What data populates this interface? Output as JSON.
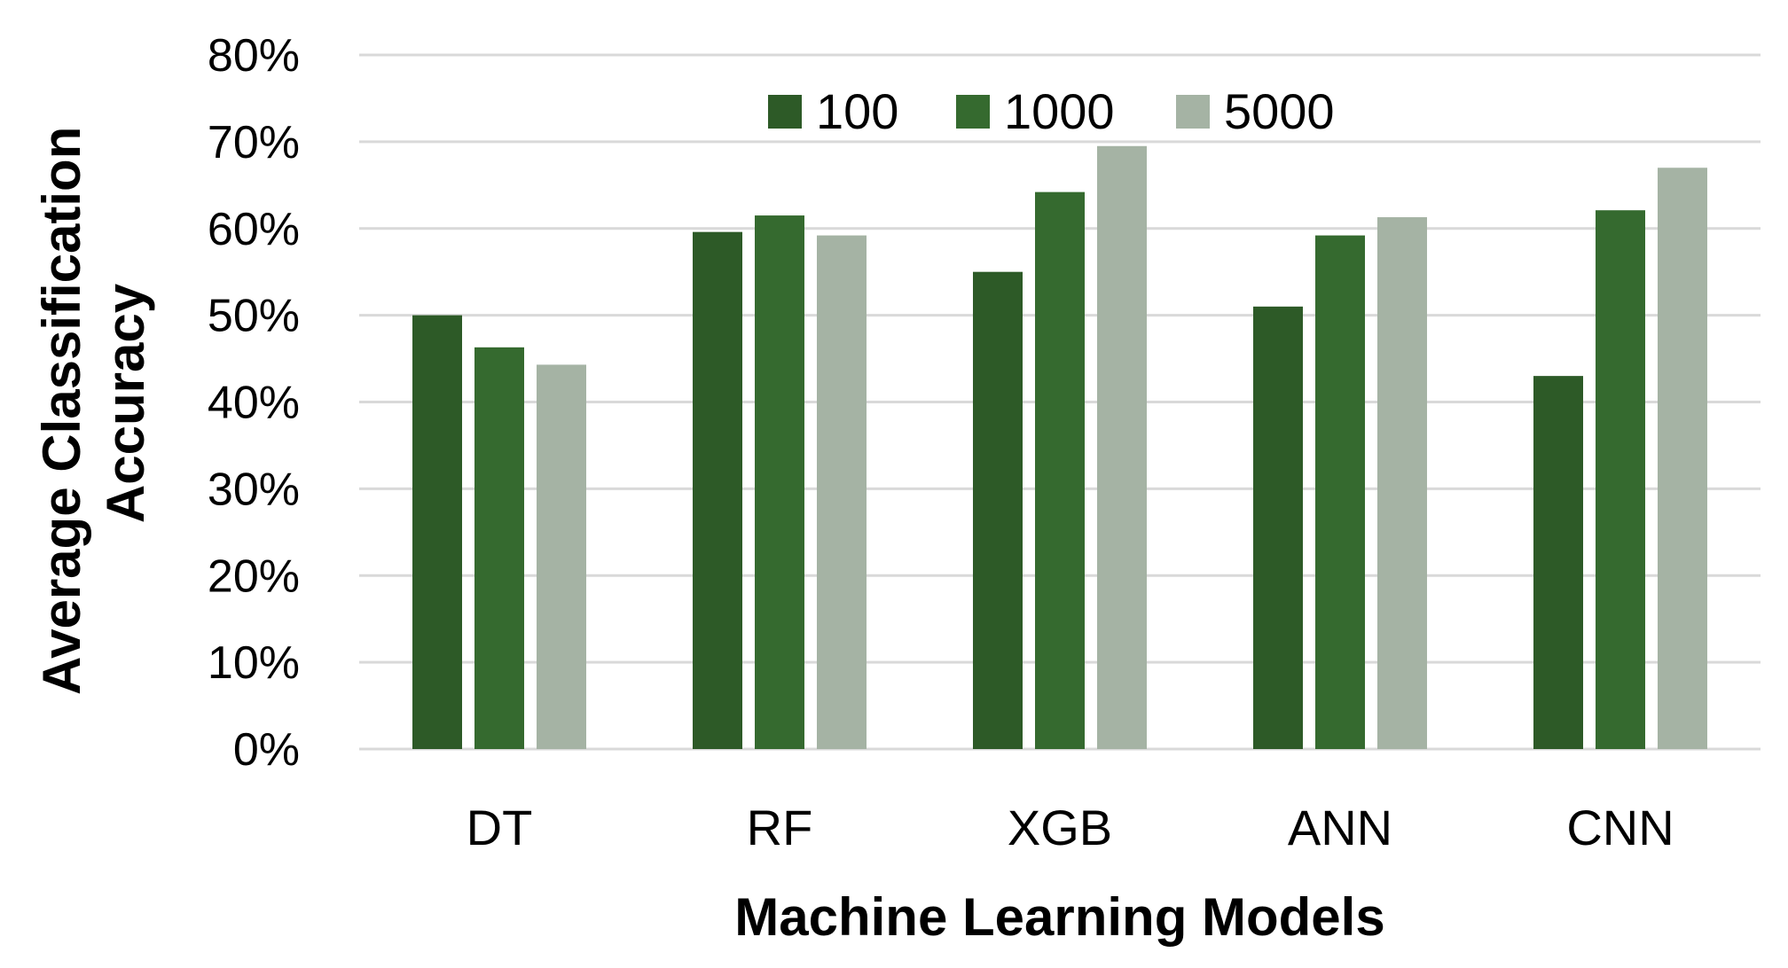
{
  "chart_data": {
    "type": "bar",
    "title": "",
    "xlabel": "Machine Learning Models",
    "ylabel_lines": [
      "Average Classification",
      "Accuracy"
    ],
    "categories": [
      "DT",
      "RF",
      "XGB",
      "ANN",
      "CNN"
    ],
    "series": [
      {
        "name": "100",
        "color": "#2d5a27",
        "values": [
          50,
          59.6,
          55,
          51,
          43
        ]
      },
      {
        "name": "1000",
        "color": "#356a2f",
        "values": [
          46.3,
          61.5,
          64.2,
          59.2,
          62.1
        ]
      },
      {
        "name": "5000",
        "color": "#a5b3a4",
        "values": [
          44.3,
          59.2,
          69.5,
          61.3,
          67
        ]
      }
    ],
    "ylim": [
      0,
      80
    ],
    "yticks": [
      0,
      10,
      20,
      30,
      40,
      50,
      60,
      70,
      80
    ],
    "ytick_labels": [
      "0%",
      "10%",
      "20%",
      "30%",
      "40%",
      "50%",
      "60%",
      "70%",
      "80%"
    ],
    "grid": true,
    "legend_position": "top-center"
  }
}
